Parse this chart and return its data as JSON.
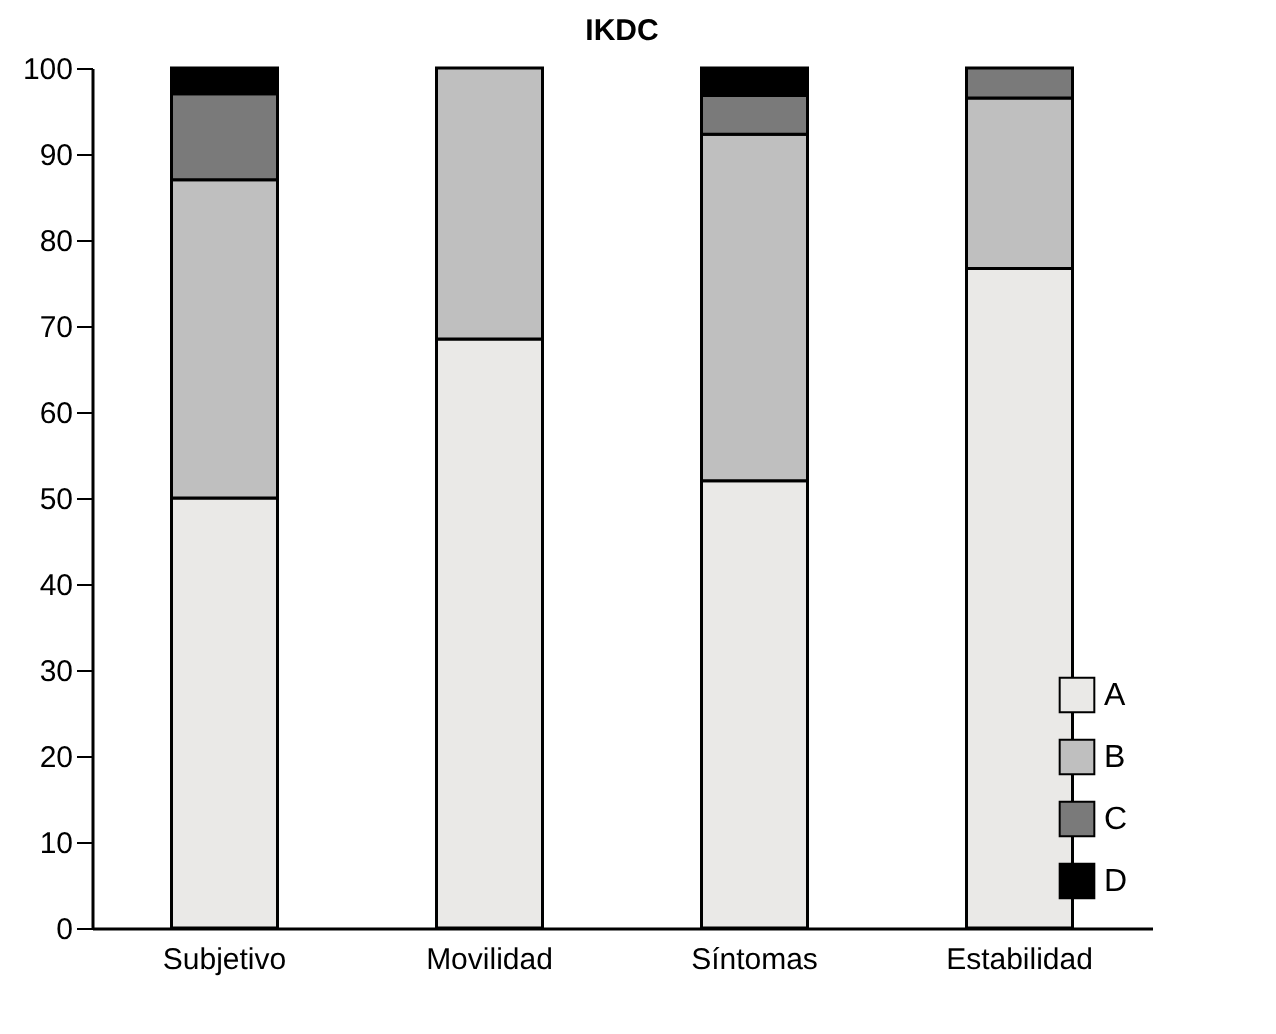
{
  "chart_data": {
    "type": "bar",
    "title": "IKDC",
    "categories": [
      "Subjetivo",
      "Movilidad",
      "Síntomas",
      "Estabilidad"
    ],
    "stacked": true,
    "series": [
      {
        "name": "A",
        "color": "#eae9e7",
        "values": [
          50,
          68.5,
          52,
          76.7
        ]
      },
      {
        "name": "B",
        "color": "#bfbfbf",
        "values": [
          37,
          31.5,
          40.3,
          19.8
        ]
      },
      {
        "name": "C",
        "color": "#7a7a7a",
        "values": [
          10,
          null,
          4.5,
          3.5
        ]
      },
      {
        "name": "D",
        "color": "#000000",
        "values": [
          3,
          null,
          3.2,
          null
        ]
      }
    ],
    "ylim": [
      0,
      100
    ],
    "yticks": [
      0,
      10,
      20,
      30,
      40,
      50,
      60,
      70,
      80,
      90,
      100
    ],
    "grid": false,
    "legend": "bottom right"
  }
}
